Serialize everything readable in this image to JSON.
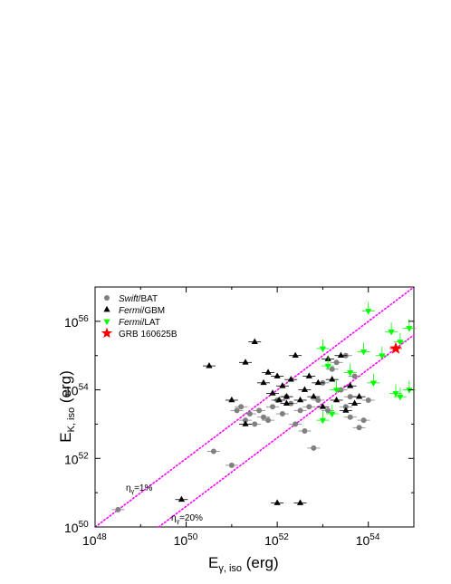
{
  "chart_data": {
    "type": "scatter",
    "xlabel": "E",
    "xlabel_sub": "γ, iso",
    "xlabel_unit": " (erg)",
    "ylabel": "E",
    "ylabel_sub": "K, iso",
    "ylabel_unit": " (erg)",
    "xscale": "log",
    "yscale": "log",
    "xlim": [
      1e+48,
      1e+55
    ],
    "ylim": [
      1e+50,
      1e+57
    ],
    "x_ticks": [
      {
        "base": "10",
        "exp": "48"
      },
      {
        "base": "10",
        "exp": "50"
      },
      {
        "base": "10",
        "exp": "52"
      },
      {
        "base": "10",
        "exp": "54"
      }
    ],
    "y_ticks": [
      {
        "base": "10",
        "exp": "50"
      },
      {
        "base": "10",
        "exp": "52"
      },
      {
        "base": "10",
        "exp": "54"
      },
      {
        "base": "10",
        "exp": "56"
      }
    ],
    "legend_position": "top-left",
    "series": [
      {
        "name": "Swift",
        "name_suffix": "/BAT",
        "italic_part": true,
        "marker": "circle",
        "color": "#808080",
        "points": [
          {
            "x": 3.2e+48,
            "y": 3.2e+50
          },
          {
            "x": 4e+50,
            "y": 1.6e+52
          },
          {
            "x": 1e+51,
            "y": 6.3e+51
          },
          {
            "x": 1.3e+51,
            "y": 2.5e+53
          },
          {
            "x": 1.6e+51,
            "y": 3.2e+53
          },
          {
            "x": 2e+51,
            "y": 1.3e+53
          },
          {
            "x": 2.5e+51,
            "y": 2e+53
          },
          {
            "x": 3.2e+51,
            "y": 1e+53
          },
          {
            "x": 4e+51,
            "y": 2.5e+53
          },
          {
            "x": 5e+51,
            "y": 1.6e+53
          },
          {
            "x": 6.3e+51,
            "y": 1.3e+53
          },
          {
            "x": 7.9e+51,
            "y": 3.2e+53
          },
          {
            "x": 1e+52,
            "y": 5e+53
          },
          {
            "x": 1.3e+52,
            "y": 2e+53
          },
          {
            "x": 1.6e+52,
            "y": 6.3e+53
          },
          {
            "x": 2e+52,
            "y": 4e+53
          },
          {
            "x": 2.5e+52,
            "y": 1e+53
          },
          {
            "x": 3.2e+52,
            "y": 2.5e+53
          },
          {
            "x": 4e+52,
            "y": 6.3e+52
          },
          {
            "x": 5e+52,
            "y": 3.2e+53
          },
          {
            "x": 6.3e+52,
            "y": 2e+52
          },
          {
            "x": 7.9e+52,
            "y": 5e+53
          },
          {
            "x": 1e+53,
            "y": 1.6e+54
          },
          {
            "x": 1.3e+53,
            "y": 2.5e+53
          },
          {
            "x": 1.6e+53,
            "y": 4e+54
          },
          {
            "x": 2e+53,
            "y": 6.3e+54
          },
          {
            "x": 2.5e+53,
            "y": 1e+54
          },
          {
            "x": 3.2e+53,
            "y": 3.2e+53
          },
          {
            "x": 4e+53,
            "y": 6.3e+53
          },
          {
            "x": 5e+53,
            "y": 2.5e+54
          },
          {
            "x": 6.3e+53,
            "y": 7.9e+52
          },
          {
            "x": 7.9e+53,
            "y": 1.3e+53
          },
          {
            "x": 1e+54,
            "y": 5e+53
          },
          {
            "x": 3.2e+53,
            "y": 1e+55
          },
          {
            "x": 4e+53,
            "y": 1.6e+53
          }
        ]
      },
      {
        "name": "Fermi",
        "name_suffix": "/GBM",
        "italic_part": true,
        "marker": "triangle-up",
        "color": "#000000",
        "points": [
          {
            "x": 7.9e+49,
            "y": 6.3e+50
          },
          {
            "x": 3.2e+50,
            "y": 5e+54
          },
          {
            "x": 1e+51,
            "y": 5e+53
          },
          {
            "x": 2e+51,
            "y": 6.3e+54
          },
          {
            "x": 3.2e+51,
            "y": 2.5e+55
          },
          {
            "x": 5e+51,
            "y": 1.6e+54
          },
          {
            "x": 6.3e+51,
            "y": 3.2e+54
          },
          {
            "x": 7.9e+51,
            "y": 7.9e+53
          },
          {
            "x": 1e+52,
            "y": 2.5e+54
          },
          {
            "x": 1.1e+52,
            "y": 5e+53
          },
          {
            "x": 1.3e+52,
            "y": 1.3e+54
          },
          {
            "x": 1.6e+52,
            "y": 6.3e+53
          },
          {
            "x": 2e+52,
            "y": 2e+54
          },
          {
            "x": 2.5e+52,
            "y": 1e+55
          },
          {
            "x": 3.2e+52,
            "y": 5e+53
          },
          {
            "x": 4e+52,
            "y": 1e+54
          },
          {
            "x": 5e+52,
            "y": 2.5e+54
          },
          {
            "x": 6.3e+52,
            "y": 6.3e+53
          },
          {
            "x": 7.9e+52,
            "y": 1.6e+54
          },
          {
            "x": 1e+53,
            "y": 3.2e+53
          },
          {
            "x": 1.3e+53,
            "y": 7.9e+54
          },
          {
            "x": 1.6e+53,
            "y": 2e+54
          },
          {
            "x": 2e+53,
            "y": 5e+53
          },
          {
            "x": 2.5e+53,
            "y": 1e+55
          },
          {
            "x": 3.2e+53,
            "y": 2.5e+53
          },
          {
            "x": 4e+53,
            "y": 1.3e+54
          },
          {
            "x": 5e+53,
            "y": 4e+53
          },
          {
            "x": 6.3e+53,
            "y": 6.3e+53
          },
          {
            "x": 1e+52,
            "y": 5e+50
          },
          {
            "x": 3.2e+52,
            "y": 5e+50
          },
          {
            "x": 1.6e+52,
            "y": 4e+53
          },
          {
            "x": 2e+51,
            "y": 1e+53
          }
        ]
      },
      {
        "name": "Fermi",
        "name_suffix": "/LAT",
        "italic_part": true,
        "marker": "triangle-down",
        "color": "#00ff00",
        "points": [
          {
            "x": 1e+53,
            "y": 1.6e+55
          },
          {
            "x": 1.3e+53,
            "y": 5e+54
          },
          {
            "x": 1.6e+53,
            "y": 2e+53
          },
          {
            "x": 2e+53,
            "y": 1e+54
          },
          {
            "x": 4e+53,
            "y": 3.2e+54
          },
          {
            "x": 7.9e+53,
            "y": 1.3e+55
          },
          {
            "x": 1e+54,
            "y": 2e+56
          },
          {
            "x": 1.3e+54,
            "y": 1.6e+54
          },
          {
            "x": 2e+54,
            "y": 1e+55
          },
          {
            "x": 3.2e+54,
            "y": 5e+55
          },
          {
            "x": 4e+54,
            "y": 7.9e+53
          },
          {
            "x": 5e+54,
            "y": 6.3e+53
          },
          {
            "x": 5e+54,
            "y": 2.5e+55
          },
          {
            "x": 7.9e+54,
            "y": 6.3e+55
          },
          {
            "x": 7.9e+54,
            "y": 1e+54
          },
          {
            "x": 1e+53,
            "y": 1.3e+53
          }
        ]
      },
      {
        "name": "GRB 160625B",
        "name_suffix": "",
        "italic_part": false,
        "marker": "star",
        "color": "#ff0000",
        "points": [
          {
            "x": 4e+54,
            "y": 1.6e+55
          }
        ]
      }
    ],
    "reference_lines": [
      {
        "label": "η",
        "label_sub": "γ",
        "label_suffix": "=1%",
        "efficiency": 0.01,
        "color": "#ff00ff",
        "style": "dotted"
      },
      {
        "label": "η",
        "label_sub": "γ",
        "label_suffix": "=20%",
        "efficiency": 0.2,
        "color": "#ff00ff",
        "style": "dotted"
      }
    ]
  }
}
